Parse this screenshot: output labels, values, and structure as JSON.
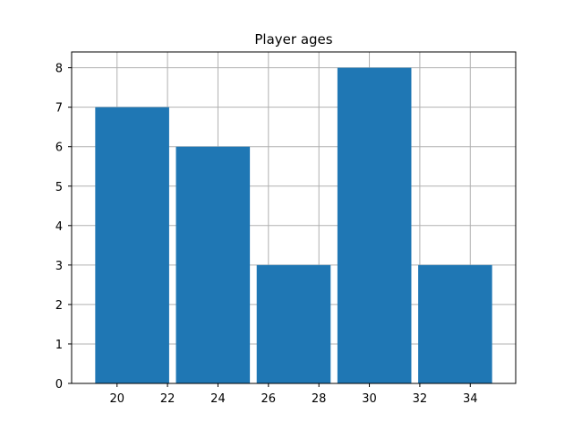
{
  "chart_data": {
    "type": "bar",
    "title": "Player ages",
    "xlabel": "",
    "ylabel": "",
    "bins": [
      {
        "start": 19.0,
        "end": 22.2,
        "value": 7
      },
      {
        "start": 22.2,
        "end": 25.4,
        "value": 6
      },
      {
        "start": 25.4,
        "end": 28.6,
        "value": 3
      },
      {
        "start": 28.6,
        "end": 31.8,
        "value": 8
      },
      {
        "start": 31.8,
        "end": 35.0,
        "value": 3
      }
    ],
    "xlim": [
      18.2,
      35.8
    ],
    "ylim": [
      0,
      8.4
    ],
    "xticks": [
      20,
      22,
      24,
      26,
      28,
      30,
      32,
      34
    ],
    "xtick_labels": [
      "20",
      "22",
      "24",
      "26",
      "28",
      "30",
      "32",
      "34"
    ],
    "yticks": [
      0,
      1,
      2,
      3,
      4,
      5,
      6,
      7,
      8
    ],
    "ytick_labels": [
      "0",
      "1",
      "2",
      "3",
      "4",
      "5",
      "6",
      "7",
      "8"
    ],
    "grid": true,
    "bar_color": "#1f77b4",
    "grid_color": "#b0b0b0"
  }
}
